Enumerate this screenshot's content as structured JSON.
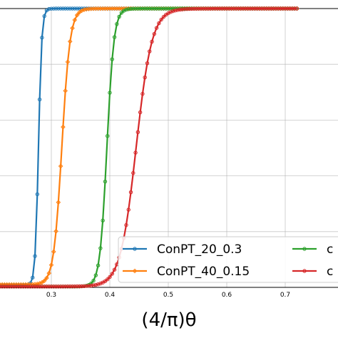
{
  "chart_data": {
    "type": "line",
    "title": "",
    "xlabel": "(4/π)θ",
    "ylabel": "",
    "xlim": [
      0.2,
      0.7
    ],
    "ylim": [
      0,
      1
    ],
    "x_ticks": [
      "0.3",
      "0.4",
      "0.5",
      "0.6",
      "0.7"
    ],
    "x_tick_values": [
      0.3,
      0.4,
      0.5,
      0.6,
      0.7
    ],
    "y_grid_values": [
      0.2,
      0.4,
      0.6,
      0.8,
      1.0
    ],
    "grid": true,
    "legend": {
      "placement": "lower-right",
      "columns": 2
    },
    "series": [
      {
        "name": "ConPT_20_0.3",
        "color": "#1f77b4",
        "marker": "circle",
        "step": 0.004,
        "logistic": {
          "center": 0.278,
          "scale": 0.0028,
          "floor": 0.008
        }
      },
      {
        "name": "ConPT_40_0.15",
        "color": "#ff7f0e",
        "marker": "diamond",
        "step": 0.004,
        "logistic": {
          "center": 0.318,
          "scale": 0.007,
          "floor": 0.01
        }
      },
      {
        "name": "c",
        "color": "#2ca02c",
        "marker": "circle",
        "step": 0.004,
        "logistic": {
          "center": 0.395,
          "scale": 0.006,
          "floor": 0.003
        }
      },
      {
        "name": "c",
        "color": "#d62728",
        "marker": "circle",
        "step": 0.004,
        "logistic": {
          "center": 0.445,
          "scale": 0.0135,
          "floor": 0.003
        }
      }
    ]
  }
}
